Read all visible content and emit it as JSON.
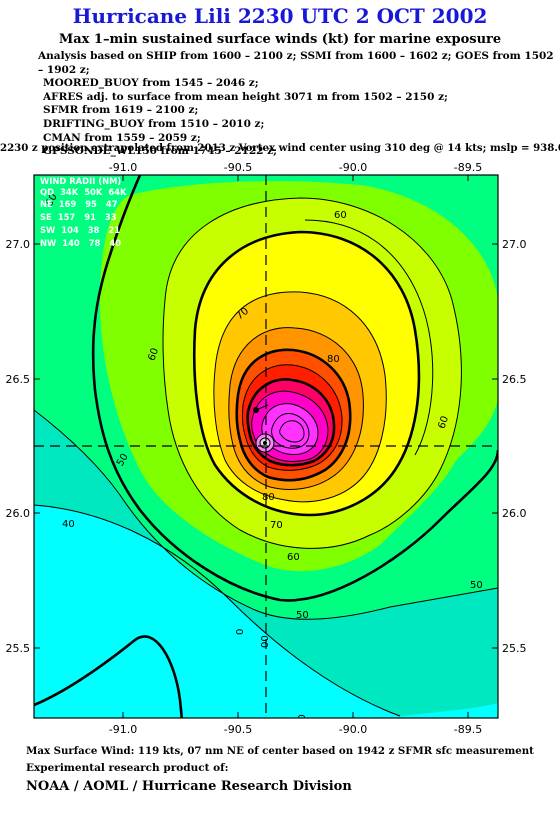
{
  "title": "Hurricane Lili 2230 UTC 2 OCT 2002",
  "subtitle": "Max 1–min sustained surface winds (kt) for marine exposure",
  "analysis_notes": [
    "Analysis based on  SHIP from 1600 – 2100 z;  SSMI from 1600 – 1602 z;  GOES from 1502 – 1902 z;",
    "MOORED_BUOY from 1545 – 2046 z;",
    "AFRES adj. to surface from mean height 3071 m from 1502 – 2150 z;",
    "SFMR from 1619 – 2100 z;",
    "DRIFTING_BUOY from 1510 – 2010 z;",
    "CMAN from 1559 – 2059 z;",
    "GPSSONDE_WL150 from 1745 – 2122 z;"
  ],
  "position_note": "2230 z position extrapolated from 2013 z Vortex wind center using 310 deg @ 14 kts; mslp = 938.0 mb",
  "map": {
    "x_ticks": [
      "-91.0",
      "-90.5",
      "-90.0",
      "-89.5"
    ],
    "y_ticks": [
      "27.0",
      "26.5",
      "26.0",
      "25.5"
    ],
    "wind_radii_table": {
      "title": "WIND RADII (NM)",
      "header": [
        "QD",
        "34K",
        "50K",
        "64K"
      ],
      "rows": [
        [
          "NE",
          "169",
          "95",
          "47"
        ],
        [
          "SE",
          "157",
          "91",
          "33"
        ],
        [
          "SW",
          "104",
          "38",
          "21"
        ],
        [
          "NW",
          "140",
          "78",
          "40"
        ]
      ]
    },
    "contour_labels": {
      "l40": "40",
      "l50a": "50",
      "l50b": "50",
      "l50c": "50",
      "l50d": "50",
      "l60a": "60",
      "l60b": "60",
      "l60c": "60",
      "l60d": "60",
      "l60e": "60",
      "l70a": "70",
      "l70b": "70",
      "l80a": "80",
      "l80b": "80",
      "l0a": "0",
      "l0b": "00"
    },
    "colors": {
      "cyan": "#00ffff",
      "teal": "#00e8c0",
      "green": "#00ff80",
      "lime": "#80ff00",
      "yellowgreen": "#c8ff00",
      "yellow": "#ffff00",
      "gold": "#ffc800",
      "orange": "#ff9600",
      "redorange": "#ff5000",
      "red": "#ff1e00",
      "crimson": "#ff0064",
      "magenta": "#ff00c8",
      "pink": "#ff32ff"
    }
  },
  "max_wind_note": "Max Surface Wind: 119 kts, 07 nm NE of center based on 1942 z SFMR sfc measurement",
  "product_note": "Experimental research product of:",
  "organization": "NOAA / AOML / Hurricane Research Division"
}
